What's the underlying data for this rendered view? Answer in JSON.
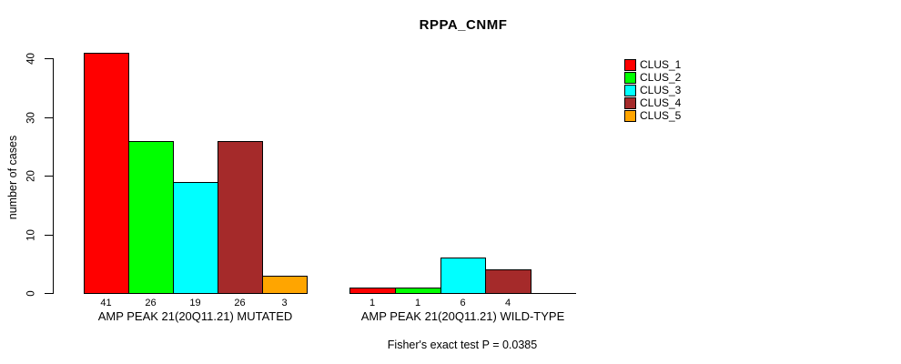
{
  "title": "RPPA_CNMF",
  "chart_data": {
    "type": "bar",
    "title": "RPPA_CNMF",
    "ylabel": "number of cases",
    "yticks": [
      0,
      10,
      20,
      30,
      40
    ],
    "ylim": [
      0,
      41
    ],
    "grid": false,
    "legend_position": "right-outside",
    "categories": [
      "AMP PEAK 21(20Q11.21) MUTATED",
      "AMP PEAK 21(20Q11.21) WILD-TYPE"
    ],
    "series": [
      {
        "name": "CLUS_1",
        "color": "#FF0000",
        "values": [
          41,
          1
        ]
      },
      {
        "name": "CLUS_2",
        "color": "#00FF00",
        "values": [
          26,
          1
        ]
      },
      {
        "name": "CLUS_3",
        "color": "#00FFFF",
        "values": [
          19,
          6
        ]
      },
      {
        "name": "CLUS_4",
        "color": "#A52A2A",
        "values": [
          26,
          4
        ]
      },
      {
        "name": "CLUS_5",
        "color": "#FFA500",
        "values": [
          3,
          0
        ]
      }
    ],
    "bar_value_labels_shown": true,
    "annotation": "Fisher's exact test P = 0.0385",
    "axis_color": "#000000",
    "bar_border_color": "#000000",
    "background_color": "#FFFFFF"
  }
}
